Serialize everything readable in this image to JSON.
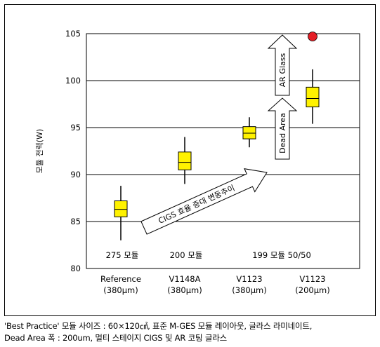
{
  "chart_data": {
    "type": "box",
    "ylabel": "모듈 전력(W)",
    "ylim": [
      80,
      105
    ],
    "yticks": [
      80,
      85,
      90,
      95,
      100,
      105
    ],
    "grid": true,
    "categories": [
      {
        "name": "Reference",
        "sub": "(380µm)",
        "group_label": "275 모듈"
      },
      {
        "name": "V1148A",
        "sub": "(380µm)",
        "group_label": "200 모듈"
      },
      {
        "name": "V1123",
        "sub": "(380µm)",
        "group_label": ""
      },
      {
        "name": "V1123",
        "sub": "(200µm)",
        "group_label": ""
      }
    ],
    "shared_group_label": "199 모듈 50/50",
    "boxes": [
      {
        "whisker_low": 83.0,
        "q1": 85.5,
        "median": 86.3,
        "q3": 87.2,
        "whisker_high": 88.8
      },
      {
        "whisker_low": 89.0,
        "q1": 90.5,
        "median": 91.3,
        "q3": 92.4,
        "whisker_high": 94.0
      },
      {
        "whisker_low": 92.9,
        "q1": 93.8,
        "median": 94.4,
        "q3": 95.1,
        "whisker_high": 96.1
      },
      {
        "whisker_low": 95.4,
        "q1": 97.2,
        "median": 98.1,
        "q3": 99.3,
        "whisker_high": 101.2
      }
    ],
    "target_point": {
      "category_index": 3,
      "value": 104.7,
      "color": "#e41e26"
    },
    "annotations": {
      "diagonal_arrow": "CIGS 효율 증대 변동추이",
      "up_arrow_1": "Dead Area",
      "up_arrow_2": "AR Glass"
    },
    "colors": {
      "box_fill": "#fff200",
      "box_stroke": "#000000",
      "point": "#e41e26"
    }
  },
  "caption": {
    "line1": "'Best Practice' 모듈 사이즈 : 60×120㎠, 표준 M-GES 모듈 레이아웃, 글라스 라미네이트,",
    "line2": "Dead Area 폭 : 200um, 멀티 스테이지 CIGS 및 AR 코팅 글라스"
  }
}
